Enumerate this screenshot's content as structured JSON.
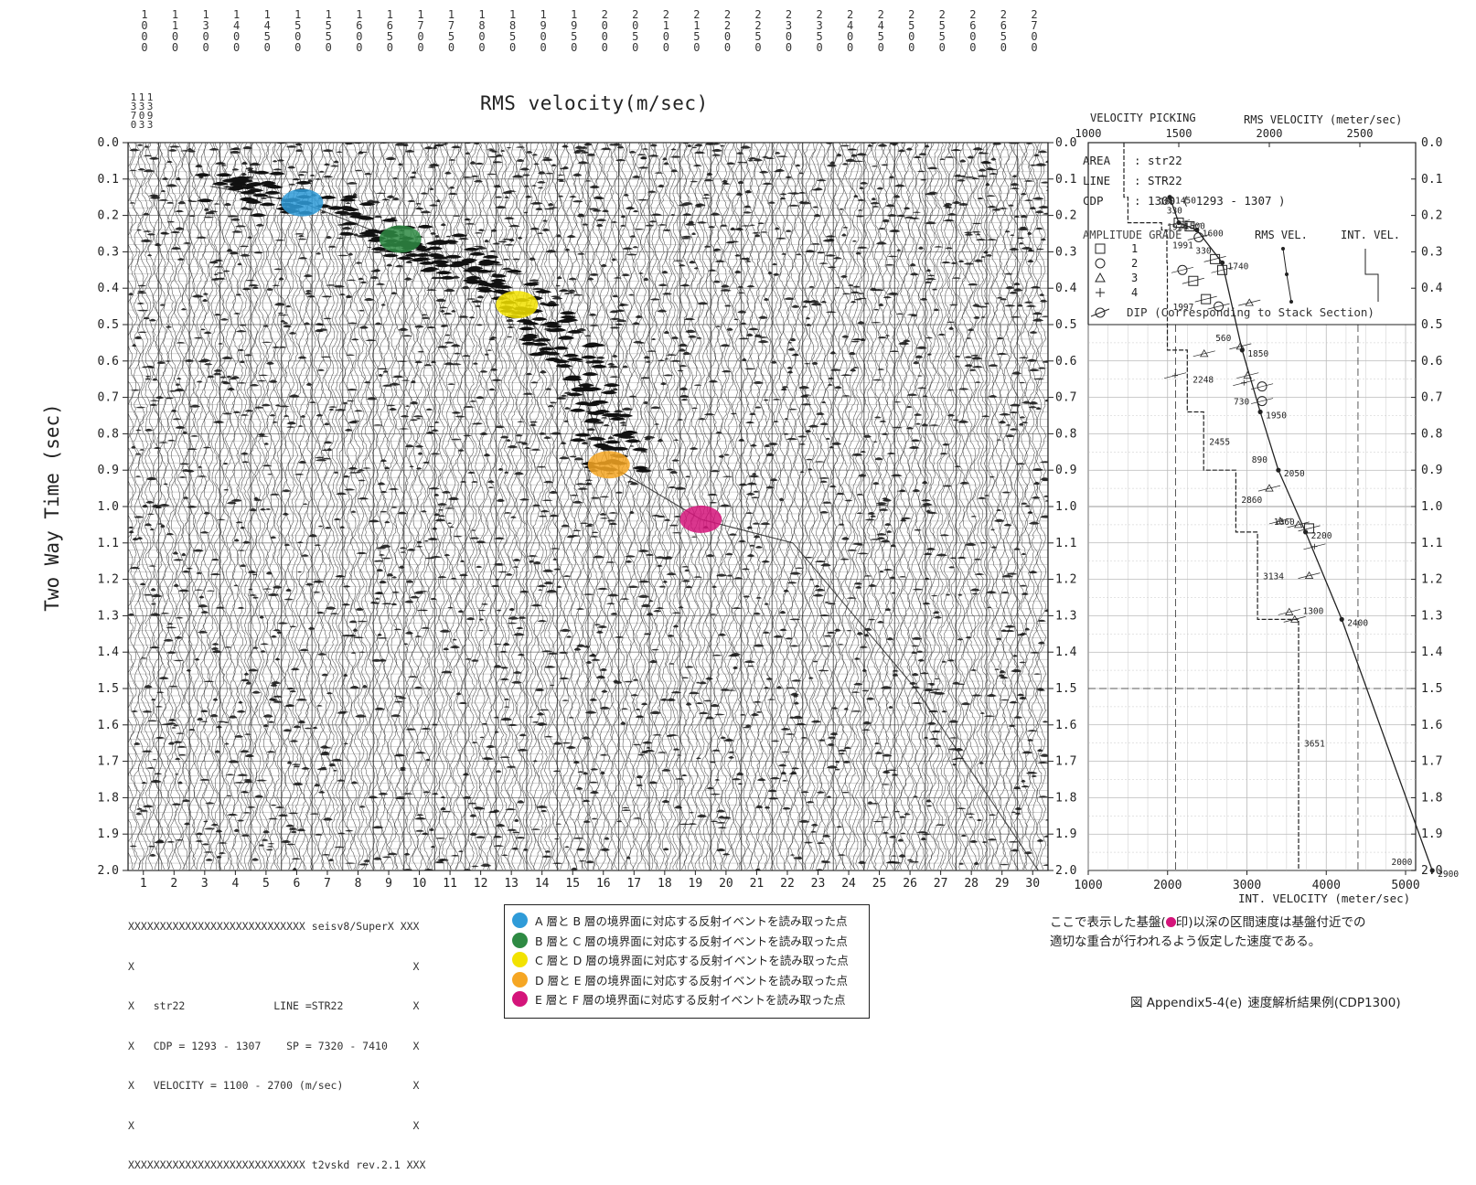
{
  "panel_title": "RMS velocity(m/sec)",
  "y_axis_label": "Two Way Time (sec)",
  "top_tick_labels": [
    "1000",
    "1100",
    "1300",
    "1400",
    "1450",
    "1500",
    "1550",
    "1600",
    "1650",
    "1700",
    "1750",
    "1800",
    "1850",
    "1900",
    "1950",
    "2000",
    "2050",
    "2100",
    "2150",
    "2200",
    "2250",
    "2300",
    "2350",
    "2400",
    "2450",
    "2500",
    "2550",
    "2600",
    "2650",
    "2700"
  ],
  "secondary_top_labels": [
    "1370",
    "1303",
    "1393"
  ],
  "time_ticks": [
    "0.0",
    "0.1",
    "0.2",
    "0.3",
    "0.4",
    "0.5",
    "0.6",
    "0.7",
    "0.8",
    "0.9",
    "1.0",
    "1.1",
    "1.2",
    "1.3",
    "1.4",
    "1.5",
    "1.6",
    "1.7",
    "1.8",
    "1.9",
    "2.0"
  ],
  "trace_numbers": [
    "1",
    "2",
    "3",
    "4",
    "5",
    "6",
    "7",
    "8",
    "9",
    "10",
    "11",
    "12",
    "13",
    "14",
    "15",
    "16",
    "17",
    "18",
    "19",
    "20",
    "21",
    "22",
    "23",
    "24",
    "25",
    "26",
    "27",
    "28",
    "29",
    "30"
  ],
  "header_block": {
    "lines": [
      "XXXXXXXXXXXXXXXXXXXXXXXXXXXX seisv8/SuperX XXX",
      "X                                            X",
      "X   str22              LINE =STR22           X",
      "X   CDP = 1293 - 1307    SP = 7320 - 7410    X",
      "X   VELOCITY = 1100 - 2700 (m/sec)           X",
      "X                                            X",
      "XXXXXXXXXXXXXXXXXXXXXXXXXXXX t2vskd rev.2.1 XXX"
    ]
  },
  "picks": [
    {
      "label": "A 層と B 層の境界面に対応する反射イベントを読み取った点",
      "color": "#2f9bd8",
      "trace": 6,
      "time": 0.165
    },
    {
      "label": "B 層と C 層の境界面に対応する反射イベントを読み取った点",
      "color": "#2e8a43",
      "trace": 9.2,
      "time": 0.265
    },
    {
      "label": "C 層と D 層の境界面に対応する反射イベントを読み取った点",
      "color": "#f2e200",
      "trace": 13,
      "time": 0.445
    },
    {
      "label": "D 層と E 層の境界面に対応する反射イベントを読み取った点",
      "color": "#f5a623",
      "trace": 16,
      "time": 0.885
    },
    {
      "label": "E 層と F 層の境界面に対応する反射イベントを読み取った点",
      "color": "#d4147a",
      "trace": 19,
      "time": 1.035
    }
  ],
  "velocity_panel": {
    "title": "VELOCITY PICKING",
    "rms_title": "RMS VELOCITY (meter/sec)",
    "rms_ticks": [
      "1000",
      "1500",
      "2000",
      "2500"
    ],
    "int_title": "INT. VELOCITY (meter/sec)",
    "int_ticks": [
      "1000",
      "2000",
      "3000",
      "4000",
      "5000"
    ],
    "info": [
      {
        "key": "AREA",
        "value": ": str22"
      },
      {
        "key": "LINE",
        "value": ": STR22"
      },
      {
        "key": "CDP",
        "value": ": 1300   ( 1293 - 1307 )"
      }
    ],
    "amp_grade_title": "AMPLITUDE GRADE",
    "amp_grades": [
      "1",
      "2",
      "3",
      "4"
    ],
    "rms_vel_label": "RMS VEL.",
    "int_vel_label": "INT. VEL.",
    "dip_label": "DIP (Corresponding to Stack Section)",
    "rms_points": [
      {
        "t": 0.15,
        "v": 1450,
        "label": "1450"
      },
      {
        "t": 0.22,
        "v": 1500,
        "label": "1500"
      },
      {
        "t": 0.24,
        "v": 1600,
        "label": "1600"
      },
      {
        "t": 0.33,
        "v": 1740,
        "label": "1740"
      },
      {
        "t": 0.57,
        "v": 1850,
        "label": "1850"
      },
      {
        "t": 0.74,
        "v": 1950,
        "label": "1950"
      },
      {
        "t": 0.9,
        "v": 2050,
        "label": "2050"
      },
      {
        "t": 1.07,
        "v": 2200,
        "label": "2200"
      },
      {
        "t": 1.31,
        "v": 2400,
        "label": "2400"
      },
      {
        "t": 2.0,
        "v": 2900,
        "label": "2900"
      }
    ],
    "int_steps": [
      {
        "t0": 0.0,
        "t1": 0.15,
        "v": 1450
      },
      {
        "t0": 0.15,
        "t1": 0.22,
        "v": 1500
      },
      {
        "t0": 0.22,
        "t1": 0.24,
        "v": 1924
      },
      {
        "t0": 0.24,
        "t1": 0.33,
        "v": 1991
      },
      {
        "t0": 0.33,
        "t1": 0.57,
        "v": 1997
      },
      {
        "t0": 0.57,
        "t1": 0.74,
        "v": 2248
      },
      {
        "t0": 0.74,
        "t1": 0.9,
        "v": 2455
      },
      {
        "t0": 0.9,
        "t1": 1.07,
        "v": 2860
      },
      {
        "t0": 1.07,
        "t1": 1.31,
        "v": 3134
      },
      {
        "t0": 1.31,
        "t1": 2.0,
        "v": 3651
      }
    ],
    "int_labels": [
      {
        "t": 0.23,
        "v": 1924,
        "label": "1924"
      },
      {
        "t": 0.28,
        "v": 1991,
        "label": "1991"
      },
      {
        "t": 0.45,
        "v": 1997,
        "label": "1997"
      },
      {
        "t": 0.65,
        "v": 2248,
        "label": "2248"
      },
      {
        "t": 0.82,
        "v": 2455,
        "label": "2455"
      },
      {
        "t": 0.98,
        "v": 2860,
        "label": "2860"
      },
      {
        "t": 1.19,
        "v": 3134,
        "label": "3134"
      },
      {
        "t": 1.65,
        "v": 3651,
        "label": "3651"
      }
    ],
    "extra_labels": [
      {
        "t": 0.175,
        "v": 1500,
        "label": "180"
      },
      {
        "t": 0.2,
        "v": 1540,
        "label": "330"
      },
      {
        "t": 0.31,
        "v": 1700,
        "label": "330"
      },
      {
        "t": 0.55,
        "v": 1810,
        "label": "560"
      },
      {
        "t": 0.725,
        "v": 1910,
        "label": "730"
      },
      {
        "t": 0.885,
        "v": 2010,
        "label": "890"
      },
      {
        "t": 1.055,
        "v": 2160,
        "label": "1060"
      },
      {
        "t": 1.3,
        "v": 2320,
        "label": "1300"
      },
      {
        "t": 1.99,
        "v": 2810,
        "label": "2000"
      }
    ],
    "grade_markers": [
      {
        "t": 0.22,
        "v": 1500,
        "g": 1
      },
      {
        "t": 0.23,
        "v": 1560,
        "g": 1
      },
      {
        "t": 0.32,
        "v": 1700,
        "g": 1
      },
      {
        "t": 0.35,
        "v": 1740,
        "g": 1
      },
      {
        "t": 0.43,
        "v": 1650,
        "g": 1
      },
      {
        "t": 0.45,
        "v": 1720,
        "g": 2
      },
      {
        "t": 0.35,
        "v": 1520,
        "g": 2
      },
      {
        "t": 0.26,
        "v": 1610,
        "g": 2
      },
      {
        "t": 0.38,
        "v": 1580,
        "g": 1
      },
      {
        "t": 0.71,
        "v": 1960,
        "g": 2
      },
      {
        "t": 0.67,
        "v": 1960,
        "g": 2
      },
      {
        "t": 1.06,
        "v": 2220,
        "g": 1
      },
      {
        "t": 1.04,
        "v": 2060,
        "g": 3
      },
      {
        "t": 1.05,
        "v": 2160,
        "g": 3
      },
      {
        "t": 0.58,
        "v": 1640,
        "g": 3
      },
      {
        "t": 0.56,
        "v": 1840,
        "g": 3
      },
      {
        "t": 0.64,
        "v": 1880,
        "g": 3
      },
      {
        "t": 0.95,
        "v": 2000,
        "g": 3
      },
      {
        "t": 1.19,
        "v": 2220,
        "g": 3
      },
      {
        "t": 1.29,
        "v": 2110,
        "g": 3
      },
      {
        "t": 1.31,
        "v": 2140,
        "g": 3
      },
      {
        "t": 0.44,
        "v": 1890,
        "g": 3
      },
      {
        "t": 0.64,
        "v": 1480,
        "g": 4
      },
      {
        "t": 1.11,
        "v": 2250,
        "g": 4
      },
      {
        "t": 0.66,
        "v": 1860,
        "g": 4
      }
    ]
  },
  "note": {
    "line1_pre": "ここで表示した基盤(",
    "line1_post": "印)以深の区間速度は基盤付近での",
    "line2": "適切な重合が行われるよう仮定した速度である。",
    "marker_color": "#d4147a"
  },
  "caption": {
    "prefix": "図 Appendix5-4(e)",
    "text": "速度解析結果例(CDP1300)"
  }
}
